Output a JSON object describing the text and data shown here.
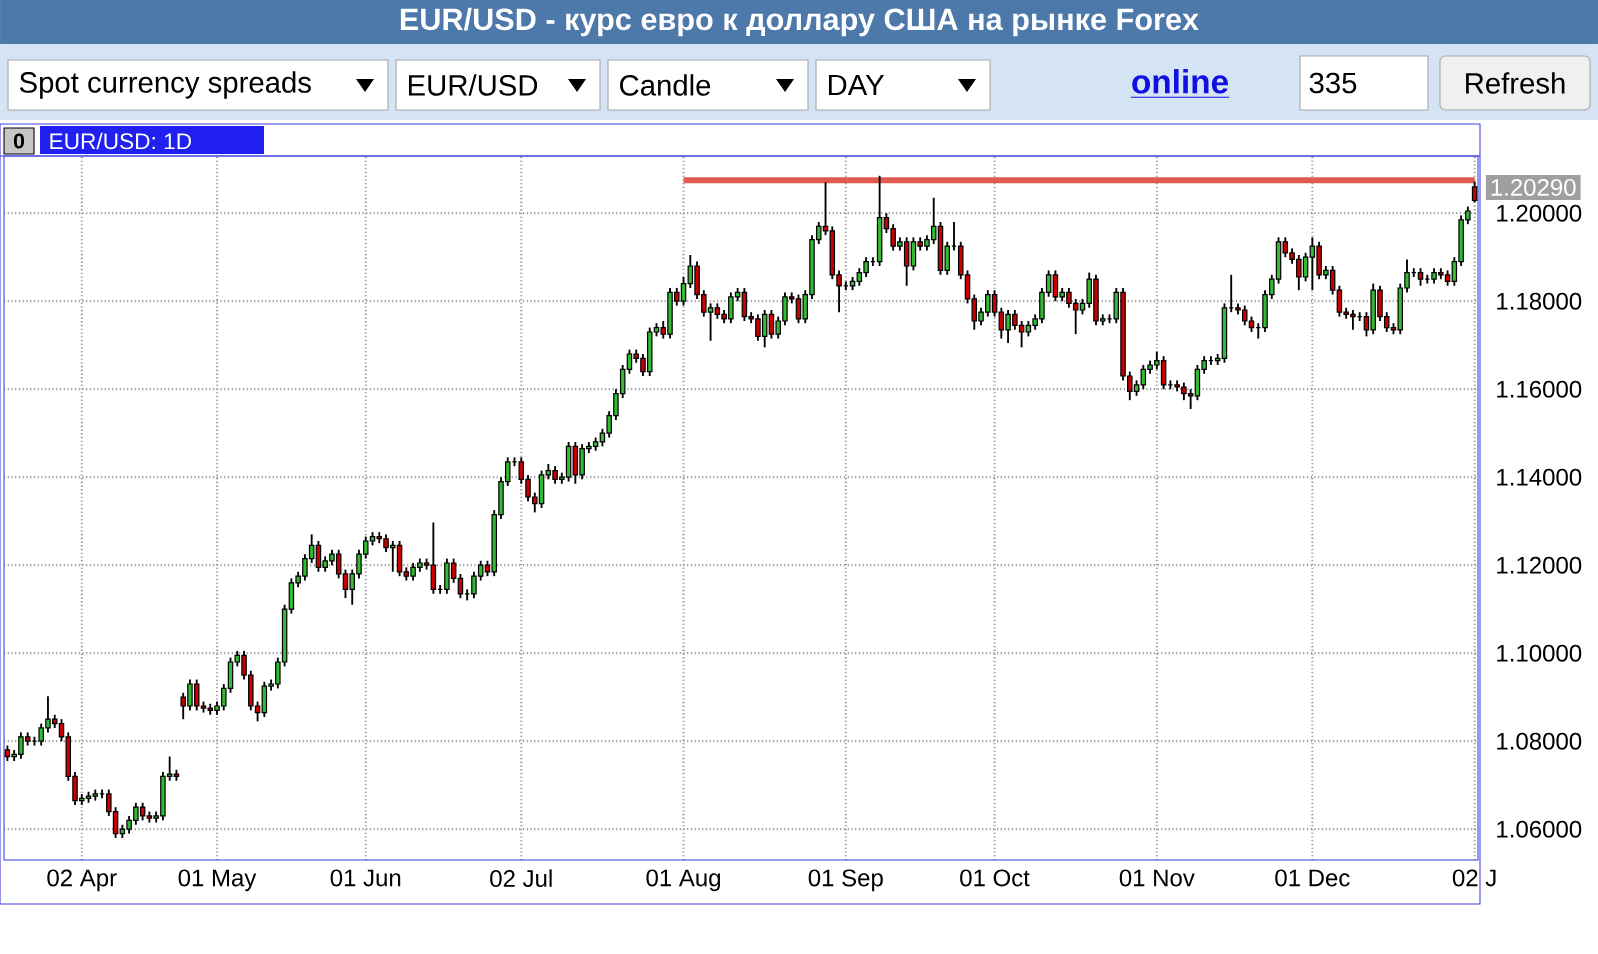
{
  "chart_data": {
    "type": "candlestick",
    "title": "EUR/USD - курс евро к доллару США на рынке Forex",
    "subtitle": "EUR/USD: 1D",
    "annotations": [
      "Spot currency spreads",
      "EUR/USD",
      "Candle",
      "DAY",
      "online",
      "335",
      "Refresh",
      "0",
      {
        "text": "1.20290",
        "x": "02 J",
        "y": 1.2029
      }
    ],
    "categories": [
      null,
      null,
      null,
      null,
      null,
      null,
      null,
      null,
      null,
      null,
      null,
      "02 Apr",
      null,
      null,
      null,
      null,
      null,
      null,
      null,
      null,
      null,
      null,
      null,
      null,
      null,
      null,
      null,
      null,
      null,
      null,
      null,
      "01 May",
      null,
      null,
      null,
      null,
      null,
      null,
      null,
      null,
      null,
      null,
      null,
      null,
      null,
      null,
      null,
      null,
      null,
      null,
      null,
      null,
      null,
      "01 Jun",
      null,
      null,
      null,
      null,
      null,
      null,
      null,
      null,
      null,
      null,
      null,
      null,
      null,
      null,
      null,
      null,
      null,
      null,
      null,
      null,
      null,
      null,
      "02 Jul",
      null,
      null,
      null,
      null,
      null,
      null,
      null,
      null,
      null,
      null,
      null,
      null,
      null,
      null,
      null,
      null,
      null,
      null,
      null,
      null,
      null,
      null,
      null,
      "01 Aug",
      null,
      null,
      null,
      null,
      null,
      null,
      null,
      null,
      null,
      null,
      null,
      null,
      null,
      null,
      null,
      null,
      null,
      null,
      null,
      null,
      null,
      null,
      null,
      "01 Sep",
      null,
      null,
      null,
      null,
      null,
      null,
      null,
      null,
      null,
      null,
      null,
      null,
      null,
      null,
      null,
      null,
      null,
      null,
      null,
      null,
      null,
      "01 Oct",
      null,
      null,
      null,
      null,
      null,
      null,
      null,
      null,
      null,
      null,
      null,
      null,
      null,
      null,
      null,
      null,
      null,
      null,
      null,
      null,
      null,
      null,
      null,
      "01 Nov",
      null,
      null,
      null,
      null,
      null,
      null,
      null,
      null,
      null,
      null,
      null,
      null,
      null,
      null,
      null,
      null,
      null,
      null,
      null,
      null,
      null,
      null,
      "01 Dec",
      null,
      null,
      null,
      null,
      null,
      null,
      null,
      null,
      null,
      null,
      null,
      null,
      null,
      null,
      null,
      null,
      null,
      null,
      null,
      null,
      null,
      null,
      null,
      "02 J"
    ],
    "ohlc": [
      [
        1.078,
        1.079,
        1.0755,
        1.0765
      ],
      [
        1.0765,
        1.078,
        1.0755,
        1.077
      ],
      [
        1.077,
        1.082,
        1.076,
        1.081
      ],
      [
        1.081,
        1.082,
        1.079,
        1.08
      ],
      [
        1.08,
        1.081,
        1.079,
        1.08
      ],
      [
        1.08,
        1.084,
        1.079,
        1.083
      ],
      [
        1.083,
        1.0902,
        1.082,
        1.085
      ],
      [
        1.085,
        1.086,
        1.083,
        1.084
      ],
      [
        1.084,
        1.085,
        1.08,
        1.081
      ],
      [
        1.081,
        1.082,
        1.071,
        1.072
      ],
      [
        1.072,
        1.073,
        1.0655,
        1.0665
      ],
      [
        1.0665,
        1.068,
        1.0655,
        1.067
      ],
      [
        1.067,
        1.0685,
        1.066,
        1.0675
      ],
      [
        1.0675,
        1.069,
        1.0665,
        1.068
      ],
      [
        1.068,
        1.069,
        1.067,
        1.068
      ],
      [
        1.068,
        1.069,
        1.063,
        1.064
      ],
      [
        1.064,
        1.065,
        1.058,
        1.059
      ],
      [
        1.059,
        1.061,
        1.058,
        1.06
      ],
      [
        1.06,
        1.063,
        1.059,
        1.062
      ],
      [
        1.062,
        1.066,
        1.061,
        1.065
      ],
      [
        1.065,
        1.066,
        1.062,
        1.063
      ],
      [
        1.063,
        1.064,
        1.0615,
        1.0625
      ],
      [
        1.0625,
        1.064,
        1.0615,
        1.063
      ],
      [
        1.063,
        1.073,
        1.062,
        1.072
      ],
      [
        1.072,
        1.0765,
        1.071,
        1.0725
      ],
      [
        1.0725,
        1.0735,
        1.071,
        1.072
      ],
      [
        1.09,
        1.091,
        1.085,
        1.088
      ],
      [
        1.088,
        1.094,
        1.087,
        1.093
      ],
      [
        1.093,
        1.094,
        1.087,
        1.088
      ],
      [
        1.088,
        1.089,
        1.0865,
        1.0875
      ],
      [
        1.0875,
        1.0885,
        1.086,
        1.087
      ],
      [
        1.087,
        1.089,
        1.086,
        1.088
      ],
      [
        1.088,
        1.093,
        1.087,
        1.092
      ],
      [
        1.092,
        1.099,
        1.091,
        1.098
      ],
      [
        1.098,
        1.1005,
        1.097,
        1.0995
      ],
      [
        1.0995,
        1.1005,
        1.094,
        1.095
      ],
      [
        1.095,
        1.096,
        1.087,
        1.088
      ],
      [
        1.088,
        1.089,
        1.0845,
        1.0865
      ],
      [
        1.0865,
        1.0935,
        1.0855,
        1.0925
      ],
      [
        1.0925,
        1.094,
        1.0915,
        1.093
      ],
      [
        1.093,
        1.099,
        1.092,
        1.098
      ],
      [
        1.098,
        1.111,
        1.097,
        1.11
      ],
      [
        1.11,
        1.117,
        1.109,
        1.116
      ],
      [
        1.116,
        1.1185,
        1.115,
        1.1175
      ],
      [
        1.1175,
        1.1225,
        1.1165,
        1.1215
      ],
      [
        1.1215,
        1.127,
        1.1205,
        1.1245
      ],
      [
        1.1245,
        1.1255,
        1.1185,
        1.1195
      ],
      [
        1.1195,
        1.122,
        1.1185,
        1.121
      ],
      [
        1.121,
        1.1235,
        1.12,
        1.1225
      ],
      [
        1.1225,
        1.1235,
        1.117,
        1.118
      ],
      [
        1.118,
        1.119,
        1.1125,
        1.1145
      ],
      [
        1.1145,
        1.119,
        1.111,
        1.118
      ],
      [
        1.118,
        1.1235,
        1.117,
        1.1225
      ],
      [
        1.1225,
        1.1265,
        1.1215,
        1.1255
      ],
      [
        1.1255,
        1.1275,
        1.1245,
        1.1265
      ],
      [
        1.1265,
        1.1275,
        1.125,
        1.126
      ],
      [
        1.126,
        1.127,
        1.123,
        1.124
      ],
      [
        1.124,
        1.1255,
        1.1185,
        1.1245
      ],
      [
        1.1245,
        1.1255,
        1.1175,
        1.1185
      ],
      [
        1.1185,
        1.1195,
        1.1165,
        1.1175
      ],
      [
        1.1175,
        1.1205,
        1.1165,
        1.1195
      ],
      [
        1.1195,
        1.1215,
        1.1185,
        1.1205
      ],
      [
        1.1205,
        1.1215,
        1.119,
        1.12
      ],
      [
        1.12,
        1.1297,
        1.1135,
        1.1145
      ],
      [
        1.1145,
        1.1155,
        1.1135,
        1.1145
      ],
      [
        1.1145,
        1.1215,
        1.1135,
        1.1205
      ],
      [
        1.1205,
        1.1215,
        1.116,
        1.117
      ],
      [
        1.117,
        1.118,
        1.1125,
        1.1135
      ],
      [
        1.1135,
        1.1145,
        1.112,
        1.1135
      ],
      [
        1.1135,
        1.1185,
        1.1125,
        1.1175
      ],
      [
        1.1175,
        1.121,
        1.1165,
        1.12
      ],
      [
        1.12,
        1.121,
        1.1175,
        1.1185
      ],
      [
        1.1185,
        1.1325,
        1.1175,
        1.1315
      ],
      [
        1.1315,
        1.14,
        1.1305,
        1.139
      ],
      [
        1.139,
        1.1445,
        1.138,
        1.1435
      ],
      [
        1.1435,
        1.1445,
        1.1425,
        1.1435
      ],
      [
        1.1435,
        1.1445,
        1.1385,
        1.1395
      ],
      [
        1.1395,
        1.1405,
        1.1345,
        1.1355
      ],
      [
        1.1355,
        1.1365,
        1.132,
        1.134
      ],
      [
        1.134,
        1.1415,
        1.133,
        1.1405
      ],
      [
        1.1405,
        1.143,
        1.1395,
        1.1415
      ],
      [
        1.1415,
        1.1425,
        1.1385,
        1.1395
      ],
      [
        1.1395,
        1.141,
        1.1385,
        1.14
      ],
      [
        1.14,
        1.148,
        1.139,
        1.147
      ],
      [
        1.147,
        1.148,
        1.1385,
        1.1405
      ],
      [
        1.1405,
        1.1475,
        1.1395,
        1.1465
      ],
      [
        1.1465,
        1.148,
        1.1455,
        1.147
      ],
      [
        1.147,
        1.149,
        1.146,
        1.148
      ],
      [
        1.148,
        1.151,
        1.147,
        1.15
      ],
      [
        1.15,
        1.155,
        1.149,
        1.154
      ],
      [
        1.154,
        1.16,
        1.153,
        1.159
      ],
      [
        1.159,
        1.1655,
        1.158,
        1.1645
      ],
      [
        1.1645,
        1.169,
        1.1635,
        1.168
      ],
      [
        1.168,
        1.169,
        1.166,
        1.167
      ],
      [
        1.167,
        1.168,
        1.163,
        1.164
      ],
      [
        1.164,
        1.174,
        1.163,
        1.173
      ],
      [
        1.173,
        1.175,
        1.172,
        1.174
      ],
      [
        1.174,
        1.1755,
        1.1715,
        1.1725
      ],
      [
        1.1725,
        1.183,
        1.1715,
        1.182
      ],
      [
        1.182,
        1.183,
        1.179,
        1.18
      ],
      [
        1.18,
        1.1855,
        1.179,
        1.184
      ],
      [
        1.184,
        1.1905,
        1.183,
        1.188
      ],
      [
        1.188,
        1.189,
        1.1805,
        1.1815
      ],
      [
        1.1815,
        1.1825,
        1.1765,
        1.1775
      ],
      [
        1.1775,
        1.1795,
        1.171,
        1.1785
      ],
      [
        1.1785,
        1.1795,
        1.176,
        1.177
      ],
      [
        1.177,
        1.178,
        1.175,
        1.176
      ],
      [
        1.176,
        1.182,
        1.175,
        1.181
      ],
      [
        1.181,
        1.183,
        1.18,
        1.182
      ],
      [
        1.182,
        1.183,
        1.1755,
        1.1765
      ],
      [
        1.1765,
        1.1775,
        1.175,
        1.176
      ],
      [
        1.176,
        1.177,
        1.171,
        1.172
      ],
      [
        1.172,
        1.178,
        1.1695,
        1.177
      ],
      [
        1.177,
        1.178,
        1.1715,
        1.1725
      ],
      [
        1.1725,
        1.1765,
        1.1715,
        1.1755
      ],
      [
        1.1755,
        1.182,
        1.1745,
        1.181
      ],
      [
        1.181,
        1.182,
        1.1795,
        1.1805
      ],
      [
        1.1805,
        1.1815,
        1.175,
        1.176
      ],
      [
        1.176,
        1.1825,
        1.175,
        1.1815
      ],
      [
        1.1815,
        1.195,
        1.1805,
        1.194
      ],
      [
        1.194,
        1.198,
        1.193,
        1.197
      ],
      [
        1.197,
        1.207,
        1.195,
        1.196
      ],
      [
        1.196,
        1.197,
        1.185,
        1.186
      ],
      [
        1.186,
        1.187,
        1.1775,
        1.1835
      ],
      [
        1.1835,
        1.1845,
        1.1825,
        1.1835
      ],
      [
        1.1835,
        1.1855,
        1.1825,
        1.1845
      ],
      [
        1.1845,
        1.1875,
        1.1835,
        1.1865
      ],
      [
        1.1865,
        1.19,
        1.1855,
        1.189
      ],
      [
        1.189,
        1.19,
        1.188,
        1.189
      ],
      [
        1.189,
        1.2085,
        1.188,
        1.199
      ],
      [
        1.199,
        1.2,
        1.1955,
        1.1965
      ],
      [
        1.1965,
        1.1975,
        1.1915,
        1.1925
      ],
      [
        1.1925,
        1.1945,
        1.1915,
        1.1935
      ],
      [
        1.1935,
        1.1945,
        1.1835,
        1.188
      ],
      [
        1.188,
        1.1945,
        1.187,
        1.1935
      ],
      [
        1.1935,
        1.1945,
        1.1915,
        1.1925
      ],
      [
        1.1925,
        1.195,
        1.1915,
        1.194
      ],
      [
        1.194,
        1.2035,
        1.193,
        1.197
      ],
      [
        1.197,
        1.198,
        1.186,
        1.187
      ],
      [
        1.187,
        1.1935,
        1.186,
        1.1925
      ],
      [
        1.1925,
        1.198,
        1.1915,
        1.1925
      ],
      [
        1.1925,
        1.1935,
        1.185,
        1.186
      ],
      [
        1.186,
        1.187,
        1.1795,
        1.1805
      ],
      [
        1.1805,
        1.1815,
        1.1735,
        1.1755
      ],
      [
        1.1755,
        1.1785,
        1.1745,
        1.1775
      ],
      [
        1.1775,
        1.1825,
        1.1765,
        1.1815
      ],
      [
        1.1815,
        1.1825,
        1.1765,
        1.1775
      ],
      [
        1.1775,
        1.1785,
        1.1715,
        1.1735
      ],
      [
        1.1735,
        1.178,
        1.1705,
        1.177
      ],
      [
        1.177,
        1.178,
        1.1735,
        1.1745
      ],
      [
        1.1745,
        1.1755,
        1.1695,
        1.173
      ],
      [
        1.173,
        1.1755,
        1.172,
        1.1745
      ],
      [
        1.1745,
        1.177,
        1.1735,
        1.176
      ],
      [
        1.176,
        1.183,
        1.175,
        1.182
      ],
      [
        1.182,
        1.187,
        1.181,
        1.186
      ],
      [
        1.186,
        1.187,
        1.18,
        1.181
      ],
      [
        1.181,
        1.183,
        1.18,
        1.182
      ],
      [
        1.182,
        1.183,
        1.1785,
        1.1795
      ],
      [
        1.1795,
        1.1805,
        1.1725,
        1.178
      ],
      [
        1.178,
        1.1805,
        1.177,
        1.1795
      ],
      [
        1.1795,
        1.1865,
        1.1785,
        1.185
      ],
      [
        1.185,
        1.186,
        1.1745,
        1.1755
      ],
      [
        1.1755,
        1.177,
        1.1745,
        1.176
      ],
      [
        1.176,
        1.177,
        1.175,
        1.176
      ],
      [
        1.176,
        1.183,
        1.175,
        1.182
      ],
      [
        1.182,
        1.183,
        1.162,
        1.163
      ],
      [
        1.163,
        1.164,
        1.1575,
        1.1595
      ],
      [
        1.1595,
        1.162,
        1.1585,
        1.161
      ],
      [
        1.161,
        1.1655,
        1.16,
        1.1645
      ],
      [
        1.1645,
        1.1665,
        1.1635,
        1.1655
      ],
      [
        1.1655,
        1.1685,
        1.1645,
        1.1665
      ],
      [
        1.1665,
        1.1675,
        1.16,
        1.161
      ],
      [
        1.161,
        1.162,
        1.16,
        1.161
      ],
      [
        1.161,
        1.162,
        1.1595,
        1.1605
      ],
      [
        1.1605,
        1.1615,
        1.1575,
        1.159
      ],
      [
        1.159,
        1.16,
        1.1555,
        1.1585
      ],
      [
        1.1585,
        1.1655,
        1.1575,
        1.1645
      ],
      [
        1.1645,
        1.1675,
        1.1635,
        1.1665
      ],
      [
        1.1665,
        1.1675,
        1.1655,
        1.1665
      ],
      [
        1.1665,
        1.168,
        1.1655,
        1.167
      ],
      [
        1.167,
        1.1795,
        1.166,
        1.1785
      ],
      [
        1.1785,
        1.186,
        1.1775,
        1.1785
      ],
      [
        1.1785,
        1.1795,
        1.177,
        1.178
      ],
      [
        1.178,
        1.179,
        1.1745,
        1.1755
      ],
      [
        1.1755,
        1.1765,
        1.173,
        1.174
      ],
      [
        1.174,
        1.175,
        1.1715,
        1.174
      ],
      [
        1.174,
        1.1825,
        1.173,
        1.1815
      ],
      [
        1.1815,
        1.186,
        1.1805,
        1.185
      ],
      [
        1.185,
        1.1945,
        1.184,
        1.1935
      ],
      [
        1.1935,
        1.1945,
        1.19,
        1.191
      ],
      [
        1.191,
        1.192,
        1.1885,
        1.1895
      ],
      [
        1.1895,
        1.1905,
        1.1825,
        1.1855
      ],
      [
        1.1855,
        1.191,
        1.1845,
        1.19
      ],
      [
        1.19,
        1.1945,
        1.1825,
        1.1925
      ],
      [
        1.1925,
        1.1935,
        1.185,
        1.186
      ],
      [
        1.186,
        1.188,
        1.185,
        1.187
      ],
      [
        1.187,
        1.188,
        1.1815,
        1.1825
      ],
      [
        1.1825,
        1.1835,
        1.1765,
        1.1775
      ],
      [
        1.1775,
        1.1785,
        1.176,
        1.177
      ],
      [
        1.177,
        1.178,
        1.1735,
        1.1765
      ],
      [
        1.1765,
        1.1775,
        1.1755,
        1.1765
      ],
      [
        1.1765,
        1.1775,
        1.172,
        1.1735
      ],
      [
        1.1735,
        1.184,
        1.1725,
        1.1825
      ],
      [
        1.1825,
        1.1835,
        1.1755,
        1.1765
      ],
      [
        1.1765,
        1.1775,
        1.173,
        1.174
      ],
      [
        1.174,
        1.175,
        1.1725,
        1.1735
      ],
      [
        1.1735,
        1.184,
        1.1725,
        1.183
      ],
      [
        1.183,
        1.1895,
        1.182,
        1.1865
      ],
      [
        1.1865,
        1.1875,
        1.1855,
        1.1865
      ],
      [
        1.1865,
        1.1875,
        1.1835,
        1.185
      ],
      [
        1.185,
        1.186,
        1.184,
        1.185
      ],
      [
        1.185,
        1.1875,
        1.184,
        1.1865
      ],
      [
        1.1865,
        1.1875,
        1.185,
        1.186
      ],
      [
        1.186,
        1.187,
        1.1835,
        1.1845
      ],
      [
        1.1845,
        1.19,
        1.1835,
        1.189
      ],
      [
        1.189,
        1.1995,
        1.188,
        1.1985
      ],
      [
        1.1985,
        1.2015,
        1.1975,
        1.2005
      ],
      [
        1.206,
        1.2072,
        1.2025,
        1.2029
      ]
    ],
    "series": [
      {
        "type": "line",
        "x": [
          "01 Aug",
          "02 J"
        ],
        "values": [
          1.2075,
          1.2075
        ],
        "color": "#e05a50"
      }
    ],
    "ylim": [
      1.053,
      1.213
    ],
    "yticks": [
      {
        "value": 1.06,
        "label": "1.06000"
      },
      {
        "value": 1.08,
        "label": "1.08000"
      },
      {
        "value": 1.1,
        "label": "1.10000"
      },
      {
        "value": 1.12,
        "label": "1.12000"
      },
      {
        "value": 1.14,
        "label": "1.14000"
      },
      {
        "value": 1.16,
        "label": "1.16000"
      },
      {
        "value": 1.18,
        "label": "1.18000"
      },
      {
        "value": 1.2,
        "label": "1.20000"
      }
    ],
    "grid": true
  }
}
